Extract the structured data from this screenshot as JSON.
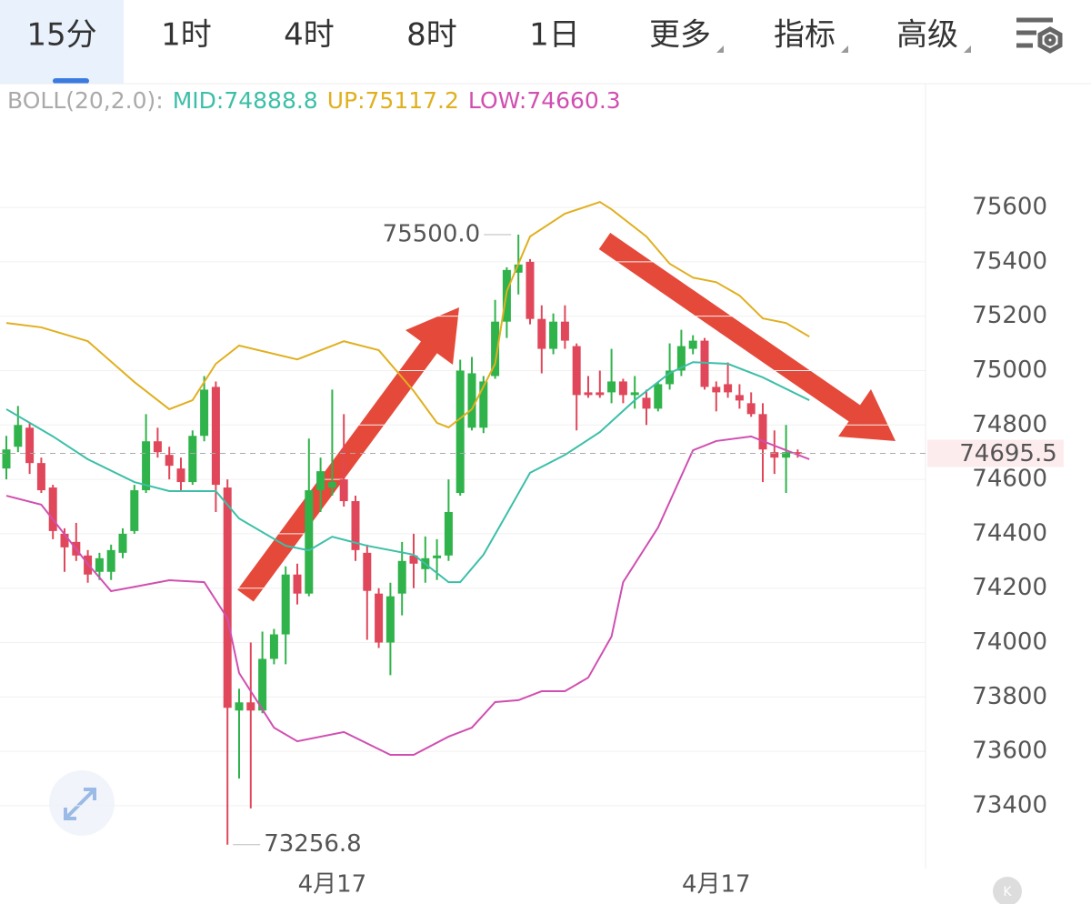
{
  "tabs": [
    "15分",
    "1时",
    "4时",
    "8时",
    "1日",
    "更多",
    "指标",
    "高级"
  ],
  "selected_tab": 0,
  "indicator": {
    "name": "BOLL(20,2.0):",
    "items": [
      {
        "label": "MID:",
        "value": 74888.8,
        "color": "#3cbfa8"
      },
      {
        "label": "UP:",
        "value": 75117.2,
        "color": "#e0b020"
      },
      {
        "label": "LOW:",
        "value": 74660.3,
        "color": "#d04fb0"
      }
    ]
  },
  "chart_data": {
    "type": "candlestick",
    "categories": [
      null,
      null,
      null,
      null,
      null,
      null,
      null,
      null,
      null,
      null,
      null,
      null,
      null,
      null,
      null,
      null,
      null,
      null,
      null,
      null,
      null,
      null,
      null,
      null,
      null,
      null,
      null,
      null,
      "4月17",
      null,
      null,
      null,
      null,
      null,
      null,
      null,
      null,
      null,
      null,
      null,
      null,
      null,
      null,
      null,
      null,
      null,
      null,
      null,
      null,
      null,
      null,
      null,
      null,
      null,
      null,
      null,
      null,
      null,
      null,
      null,
      null,
      "4月17",
      null,
      null,
      null,
      null,
      null,
      null,
      null
    ],
    "open": [
      74640,
      74720,
      74790,
      74660,
      74570,
      74400,
      74370,
      74320,
      74260,
      74260,
      74330,
      74410,
      74560,
      74740,
      74690,
      74640,
      74590,
      74760,
      74940,
      74570,
      73750,
      73780,
      73750,
      73940,
      74030,
      74250,
      74180,
      74560,
      74570,
      74600,
      74520,
      74330,
      74180,
      74000,
      74180,
      74320,
      74270,
      74310,
      74320,
      74550,
      74790,
      74790,
      74980,
      75180,
      75360,
      75400,
      75190,
      75080,
      75180,
      75090,
      74920,
      74920,
      74920,
      74960,
      74910,
      74900,
      74860,
      74950,
      75000,
      75080,
      75110,
      74940,
      74950,
      74910,
      74880,
      74840,
      74700,
      74680,
      74700
    ],
    "high": [
      74760,
      74870,
      74810,
      74680,
      74580,
      74420,
      74440,
      74340,
      74330,
      74360,
      74420,
      74580,
      74840,
      74790,
      74720,
      74680,
      74780,
      74980,
      74960,
      74600,
      73830,
      74000,
      74040,
      74050,
      74280,
      74290,
      74750,
      74680,
      74930,
      74840,
      74540,
      74360,
      74200,
      74220,
      74370,
      74400,
      74390,
      74380,
      74600,
      75040,
      75050,
      74980,
      75260,
      75380,
      75500,
      75410,
      75240,
      75210,
      75240,
      75100,
      74980,
      75000,
      75080,
      74970,
      74980,
      74930,
      74960,
      75100,
      75150,
      75130,
      75120,
      74960,
      75030,
      74950,
      74920,
      74880,
      74780,
      74800,
      74710
    ],
    "low": [
      74600,
      74700,
      74620,
      74550,
      74380,
      74260,
      74300,
      74220,
      74230,
      74230,
      74310,
      74400,
      74550,
      74680,
      74600,
      74560,
      74580,
      74740,
      74480,
      73256.8,
      73500,
      73390,
      73740,
      73920,
      73920,
      74140,
      74170,
      74480,
      74540,
      74500,
      74300,
      74010,
      73980,
      73880,
      74100,
      74200,
      74220,
      74230,
      74300,
      74540,
      74780,
      74770,
      74970,
      75120,
      75280,
      75170,
      74990,
      75060,
      75080,
      74780,
      74900,
      74900,
      74880,
      74880,
      74860,
      74800,
      74850,
      74930,
      74980,
      75060,
      74930,
      74850,
      74900,
      74860,
      74830,
      74590,
      74620,
      74550,
      74680
    ],
    "close": [
      74710,
      74800,
      74660,
      74560,
      74410,
      74350,
      74320,
      74250,
      74310,
      74340,
      74400,
      74560,
      74740,
      74700,
      74650,
      74590,
      74760,
      74930,
      74580,
      73760,
      73780,
      73750,
      73940,
      74030,
      74250,
      74180,
      74560,
      74630,
      74590,
      74520,
      74340,
      74190,
      74000,
      74170,
      74300,
      74290,
      74310,
      74320,
      74480,
      75000,
      74990,
      74960,
      75180,
      75370,
      75390,
      75190,
      75080,
      75180,
      75110,
      74910,
      74910,
      74910,
      74960,
      74910,
      74920,
      74860,
      74950,
      75000,
      75090,
      75110,
      74940,
      74920,
      74920,
      74890,
      74840,
      74710,
      74680,
      74700,
      74695.5
    ],
    "up_color": "#2fb34a",
    "down_color": "#e0475a",
    "bands": [
      {
        "name": "UP",
        "color": "#e0b020",
        "x": [
          0,
          3,
          7,
          11,
          14,
          16,
          18,
          20,
          25,
          29,
          32,
          35,
          37,
          38,
          40,
          42,
          43,
          45,
          48,
          51,
          52,
          55,
          57,
          59,
          61,
          63,
          65,
          67,
          69
        ],
        "values": [
          75175,
          75159,
          75108,
          74958,
          74858,
          74891,
          75025,
          75092,
          75041,
          75108,
          75075,
          74925,
          74808,
          74791,
          74858,
          75025,
          75292,
          75493,
          75577,
          75620,
          75593,
          75493,
          75393,
          75342,
          75325,
          75276,
          75192,
          75175,
          75125
        ]
      },
      {
        "name": "MID",
        "color": "#3cbfa8",
        "x": [
          0,
          2,
          4,
          7,
          11,
          14,
          18,
          20,
          24,
          26,
          28,
          31,
          35,
          38,
          39,
          41,
          43,
          45,
          48,
          51,
          54,
          57,
          59,
          62,
          65,
          69
        ],
        "values": [
          74858,
          74808,
          74758,
          74674,
          74590,
          74557,
          74557,
          74456,
          74356,
          74339,
          74389,
          74356,
          74323,
          74222,
          74222,
          74323,
          74473,
          74624,
          74690,
          74774,
          74891,
          74991,
          75031,
          75025,
          74975,
          74891
        ]
      },
      {
        "name": "LOW",
        "color": "#d04fb0",
        "x": [
          0,
          3,
          7,
          9,
          11,
          14,
          17,
          19,
          20,
          23,
          25,
          29,
          33,
          35,
          38,
          40,
          42,
          44,
          46,
          48,
          50,
          52,
          53,
          56,
          59,
          61,
          64,
          66,
          67,
          69
        ],
        "values": [
          74540,
          74507,
          74289,
          74189,
          74205,
          74229,
          74222,
          74089,
          73888,
          73687,
          73637,
          73671,
          73587,
          73587,
          73654,
          73687,
          73781,
          73788,
          73821,
          73821,
          73871,
          74022,
          74222,
          74423,
          74707,
          74741,
          74758,
          74724,
          74707,
          74674
        ]
      }
    ],
    "ylim": [
      73169,
      76045
    ],
    "yticks": [
      73400,
      73600,
      73800,
      74000,
      74200,
      74400,
      74600,
      74800,
      75000,
      75200,
      75400,
      75600
    ],
    "grid": true,
    "high_mark": {
      "index": 44,
      "value": 75500,
      "label": "75500.0"
    },
    "low_mark": {
      "index": 19,
      "value": 73256.8
    },
    "last_price": 74695.5
  }
}
